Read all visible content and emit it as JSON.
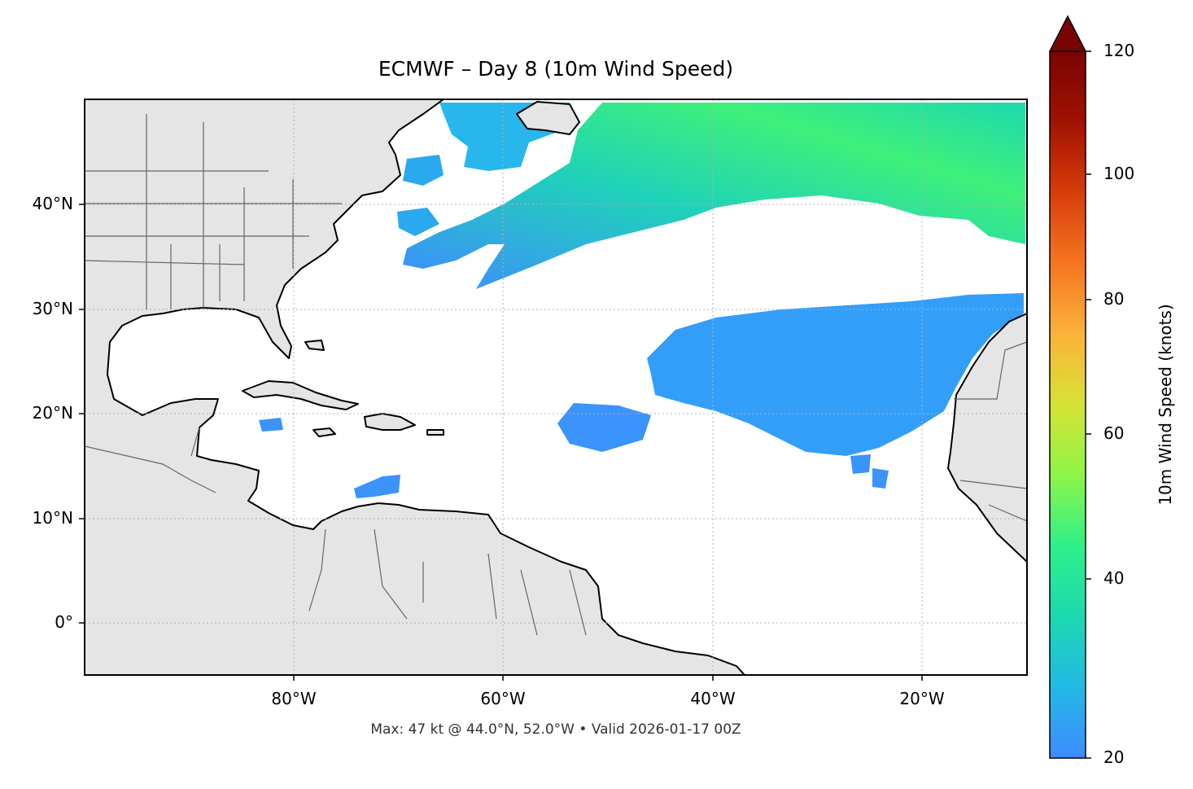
{
  "title": "ECMWF – Day 8 (10m Wind Speed)",
  "subtitle": "Max: 47 kt @ 44.0°N, 52.0°W • Valid 2026-01-17 00Z",
  "map": {
    "lon_range": [
      -100,
      -10
    ],
    "lat_range": [
      -5,
      50
    ],
    "lat_ticks": [
      {
        "value": 40,
        "label": "40°N"
      },
      {
        "value": 30,
        "label": "30°N"
      },
      {
        "value": 20,
        "label": "20°N"
      },
      {
        "value": 10,
        "label": "10°N"
      },
      {
        "value": 0,
        "label": "0°"
      }
    ],
    "lon_ticks": [
      {
        "value": -80,
        "label": "80°W"
      },
      {
        "value": -60,
        "label": "60°W"
      },
      {
        "value": -40,
        "label": "40°W"
      },
      {
        "value": -20,
        "label": "20°W"
      }
    ],
    "gridlines": true,
    "land_color": "#e5e5e5",
    "ocean_color": "#ffffff",
    "max_wind": {
      "value_kt": 47,
      "lat": 44.0,
      "lon": -52.0
    }
  },
  "colorbar": {
    "label": "10m Wind Speed (knots)",
    "range": [
      20,
      120
    ],
    "extend": "max",
    "ticks": [
      {
        "value": 120,
        "label": "120"
      },
      {
        "value": 100,
        "label": "100"
      },
      {
        "value": 80,
        "label": "80"
      },
      {
        "value": 60,
        "label": "60"
      },
      {
        "value": 40,
        "label": "40"
      },
      {
        "value": 20,
        "label": "20"
      }
    ],
    "colors": [
      "#3f8bff",
      "#22b8e6",
      "#1cd9b0",
      "#2ef08a",
      "#8ef547",
      "#d6e234",
      "#fbb33a",
      "#f57520",
      "#d73d0b",
      "#a01202",
      "#7a0403"
    ]
  }
}
